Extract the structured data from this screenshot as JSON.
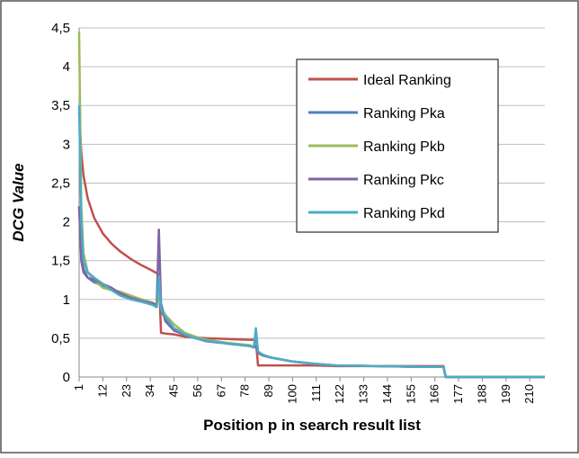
{
  "chart_data": {
    "type": "line",
    "x_label": "Position p in search result list",
    "y_label": "DCG Value",
    "x": [
      1,
      2,
      3,
      5,
      8,
      12,
      16,
      20,
      25,
      30,
      35,
      37,
      38,
      39,
      41,
      45,
      50,
      55,
      60,
      70,
      80,
      82,
      83,
      84,
      86,
      90,
      100,
      110,
      120,
      140,
      160,
      170,
      171,
      217
    ],
    "series": [
      {
        "name": "Ideal Ranking",
        "color": "#c0504d",
        "values": [
          3.4,
          2.9,
          2.6,
          2.3,
          2.05,
          1.85,
          1.72,
          1.62,
          1.52,
          1.44,
          1.37,
          1.34,
          1.32,
          0.57,
          0.56,
          0.55,
          0.52,
          0.51,
          0.5,
          0.49,
          0.48,
          0.48,
          0.47,
          0.15,
          0.15,
          0.15,
          0.15,
          0.15,
          0.14,
          0.14,
          0.14,
          0.14,
          0,
          0
        ]
      },
      {
        "name": "Ranking Pka",
        "color": "#4f81bd",
        "values": [
          2.2,
          1.6,
          1.4,
          1.28,
          1.22,
          1.18,
          1.13,
          1.08,
          1.03,
          1.0,
          0.95,
          0.92,
          1.2,
          0.85,
          0.75,
          0.62,
          0.55,
          0.5,
          0.47,
          0.43,
          0.4,
          0.38,
          0.45,
          0.32,
          0.29,
          0.25,
          0.2,
          0.17,
          0.15,
          0.14,
          0.13,
          0.13,
          0,
          0
        ]
      },
      {
        "name": "Ranking Pkb",
        "color": "#9bbb59",
        "values": [
          4.45,
          2.2,
          1.6,
          1.35,
          1.25,
          1.15,
          1.12,
          1.1,
          1.05,
          1.0,
          0.96,
          0.93,
          1.1,
          0.9,
          0.8,
          0.68,
          0.57,
          0.52,
          0.48,
          0.44,
          0.41,
          0.39,
          0.42,
          0.31,
          0.28,
          0.25,
          0.2,
          0.17,
          0.15,
          0.14,
          0.13,
          0.13,
          0,
          0
        ]
      },
      {
        "name": "Ranking Pkc",
        "color": "#8064a2",
        "values": [
          2.2,
          1.5,
          1.35,
          1.28,
          1.25,
          1.2,
          1.15,
          1.08,
          1.02,
          0.98,
          0.95,
          0.93,
          1.9,
          0.95,
          0.72,
          0.6,
          0.54,
          0.5,
          0.46,
          0.43,
          0.4,
          0.38,
          0.4,
          0.31,
          0.28,
          0.25,
          0.2,
          0.17,
          0.15,
          0.14,
          0.13,
          0.13,
          0,
          0
        ]
      },
      {
        "name": "Ranking Pkd",
        "color": "#4bacc6",
        "values": [
          3.5,
          2.0,
          1.5,
          1.35,
          1.28,
          1.2,
          1.12,
          1.05,
          1.0,
          0.97,
          0.93,
          0.9,
          1.3,
          0.88,
          0.78,
          0.63,
          0.55,
          0.5,
          0.47,
          0.43,
          0.4,
          0.38,
          0.63,
          0.33,
          0.29,
          0.25,
          0.2,
          0.17,
          0.15,
          0.14,
          0.13,
          0.13,
          0,
          0
        ]
      }
    ],
    "xlim": [
      1,
      217
    ],
    "xticks": [
      1,
      12,
      23,
      34,
      45,
      56,
      67,
      78,
      89,
      100,
      111,
      122,
      133,
      144,
      155,
      166,
      177,
      188,
      199,
      210
    ],
    "ylim": [
      0,
      4.5
    ],
    "yticks": [
      0,
      {
        "value": 0.5,
        "label": "0,5"
      },
      1,
      {
        "value": 1.5,
        "label": "1,5"
      },
      2,
      {
        "value": 2.5,
        "label": "2,5"
      },
      3,
      {
        "value": 3.5,
        "label": "3,5"
      },
      4,
      {
        "value": 4.5,
        "label": "4,5"
      }
    ],
    "grid": true
  }
}
